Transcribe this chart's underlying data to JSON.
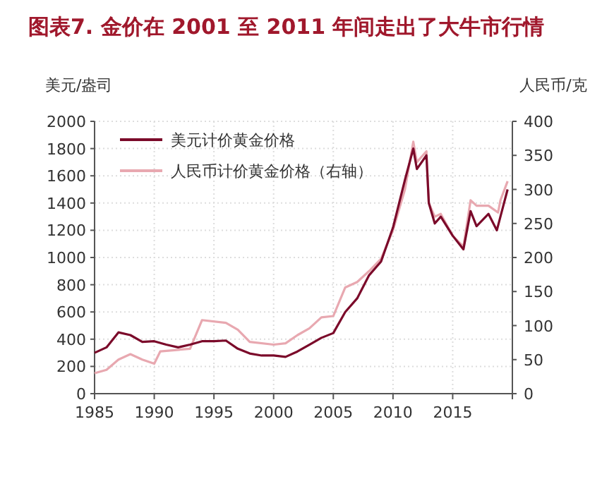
{
  "chart_data": {
    "type": "line",
    "title": "图表7. 金价在 2001 至 2011 年间走出了大牛市行情",
    "ylabel": "美元/盎司",
    "y2label": "人民币/克",
    "xlim": [
      1985,
      2020
    ],
    "xticks": [
      1985,
      1990,
      1995,
      2000,
      2005,
      2010,
      2015,
      {
        "value": 2020,
        "label": null
      }
    ],
    "ylim": [
      0,
      2000
    ],
    "yticks": [
      0,
      200,
      400,
      600,
      800,
      1000,
      1200,
      1400,
      1600,
      1800,
      2000
    ],
    "y2lim": [
      0,
      400
    ],
    "y2ticks": [
      0,
      50,
      100,
      150,
      200,
      250,
      300,
      350,
      400
    ],
    "grid": true,
    "legend": "top left",
    "series": [
      {
        "name": "美元计价黄金价格",
        "color": "#7b0a2a",
        "x": [
          1985,
          1986,
          1987,
          1988,
          1989,
          1990,
          1991,
          1992,
          1993,
          1994,
          1995,
          1996,
          1997,
          1998,
          1999,
          2000,
          2001,
          2002,
          2003,
          2004,
          2005,
          2006,
          2007,
          2008,
          2009,
          2010,
          2011,
          2011.7,
          2012,
          2012.8,
          2013,
          2013.5,
          2014,
          2015,
          2015.9,
          2016.5,
          2017,
          2018,
          2018.7,
          2019,
          2019.6
        ],
        "values": [
          300,
          340,
          450,
          430,
          380,
          385,
          360,
          340,
          360,
          385,
          385,
          390,
          330,
          295,
          280,
          280,
          270,
          310,
          360,
          410,
          445,
          600,
          700,
          870,
          970,
          1220,
          1570,
          1800,
          1650,
          1750,
          1400,
          1250,
          1300,
          1160,
          1060,
          1340,
          1230,
          1320,
          1200,
          1300,
          1500
        ]
      },
      {
        "name": "人民币计价黄金价格（右轴）",
        "color": "#e8a8b0",
        "axis": "y2",
        "x": [
          1985,
          1986,
          1987,
          1988,
          1989,
          1990,
          1990.5,
          1993,
          1994,
          1996,
          1997,
          1998,
          2000,
          2001,
          2002,
          2003,
          2004,
          2005,
          2006,
          2007,
          2008,
          2009,
          2010,
          2011,
          2011.7,
          2012,
          2012.8,
          2013,
          2013.5,
          2014,
          2015,
          2015.9,
          2016.5,
          2017,
          2018,
          2018.8,
          2019,
          2019.6
        ],
        "values": [
          30,
          35,
          50,
          58,
          50,
          44,
          62,
          66,
          108,
          104,
          94,
          76,
          72,
          74,
          86,
          96,
          112,
          114,
          156,
          164,
          180,
          198,
          240,
          300,
          370,
          340,
          356,
          280,
          260,
          264,
          232,
          216,
          284,
          276,
          276,
          266,
          284,
          312
        ]
      }
    ]
  }
}
